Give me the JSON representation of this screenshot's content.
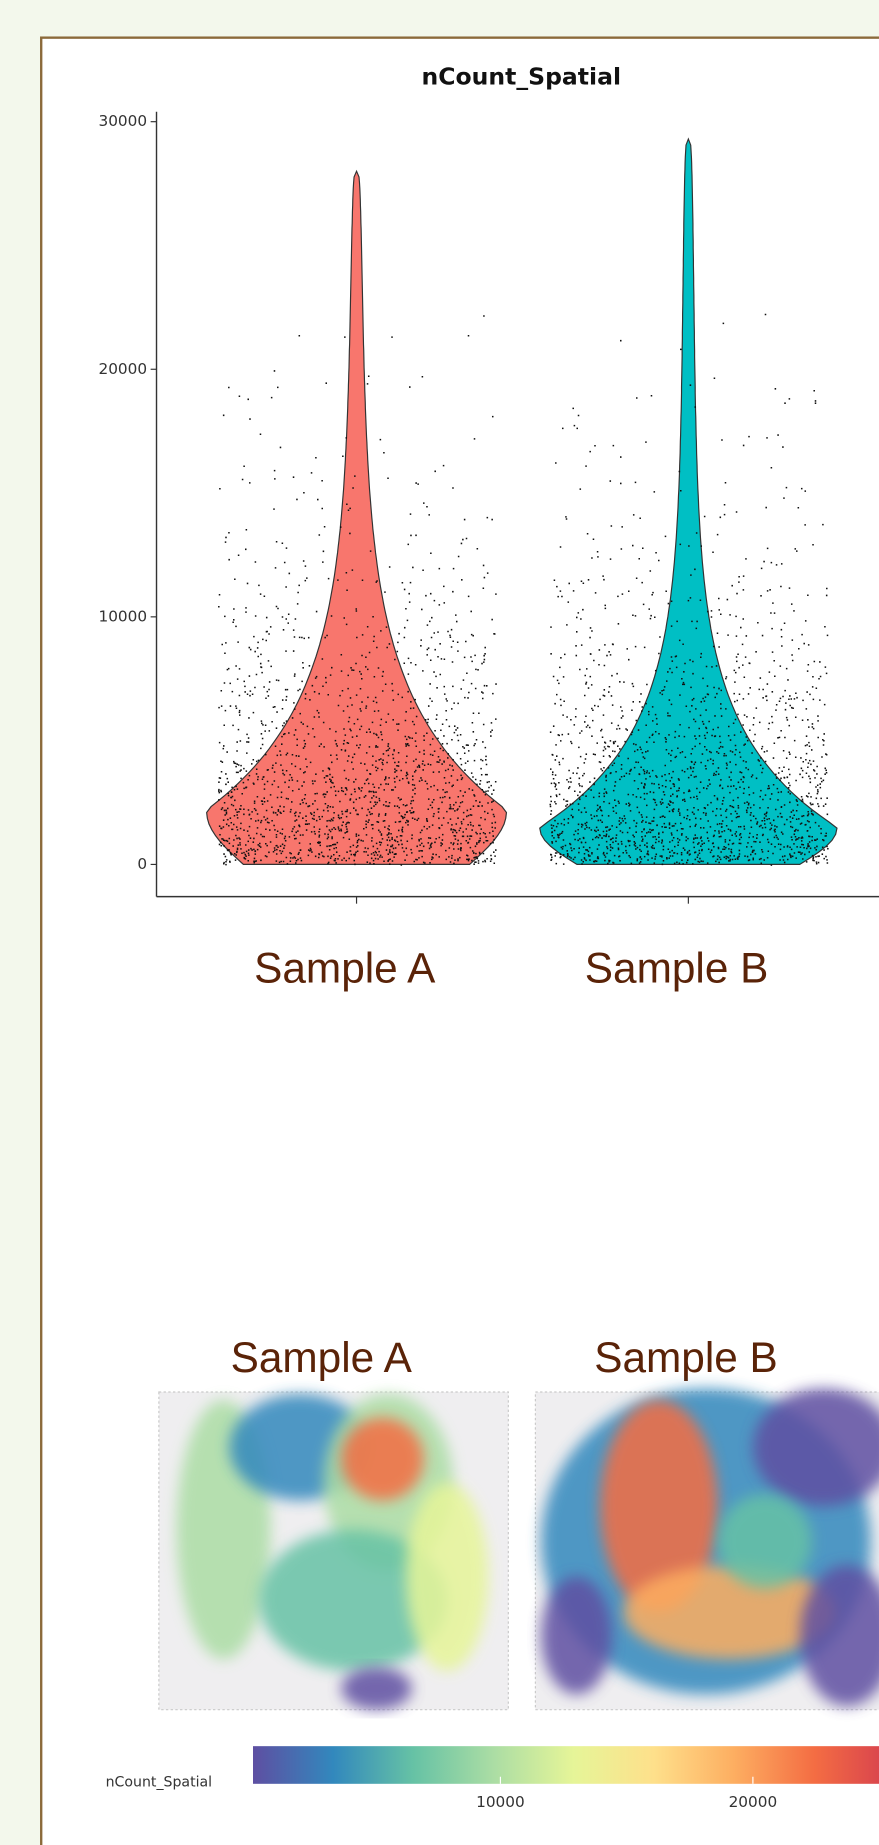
{
  "chart_data": [
    {
      "type": "violin",
      "title": "nCount_Spatial",
      "categories": [
        "Sample A",
        "Sample B"
      ],
      "max": [
        28000,
        29300
      ],
      "colors": [
        "#f8766d",
        "#00bfc4"
      ],
      "ylim": [
        -1300,
        30400
      ],
      "yticks": [
        0,
        10000,
        20000,
        30000
      ]
    },
    {
      "type": "spatial",
      "panels": [
        "Sample A",
        "Sample B"
      ],
      "colorbar_label": "nCount_Spatial",
      "clim": [
        200,
        25600
      ],
      "cticks": [
        10000,
        20000
      ],
      "colors": [
        "#5e4fa2",
        "#3288bd",
        "#66c2a5",
        "#abdda4",
        "#e6f598",
        "#fee08b",
        "#fdae61",
        "#f46d43",
        "#d53e4f"
      ]
    }
  ]
}
